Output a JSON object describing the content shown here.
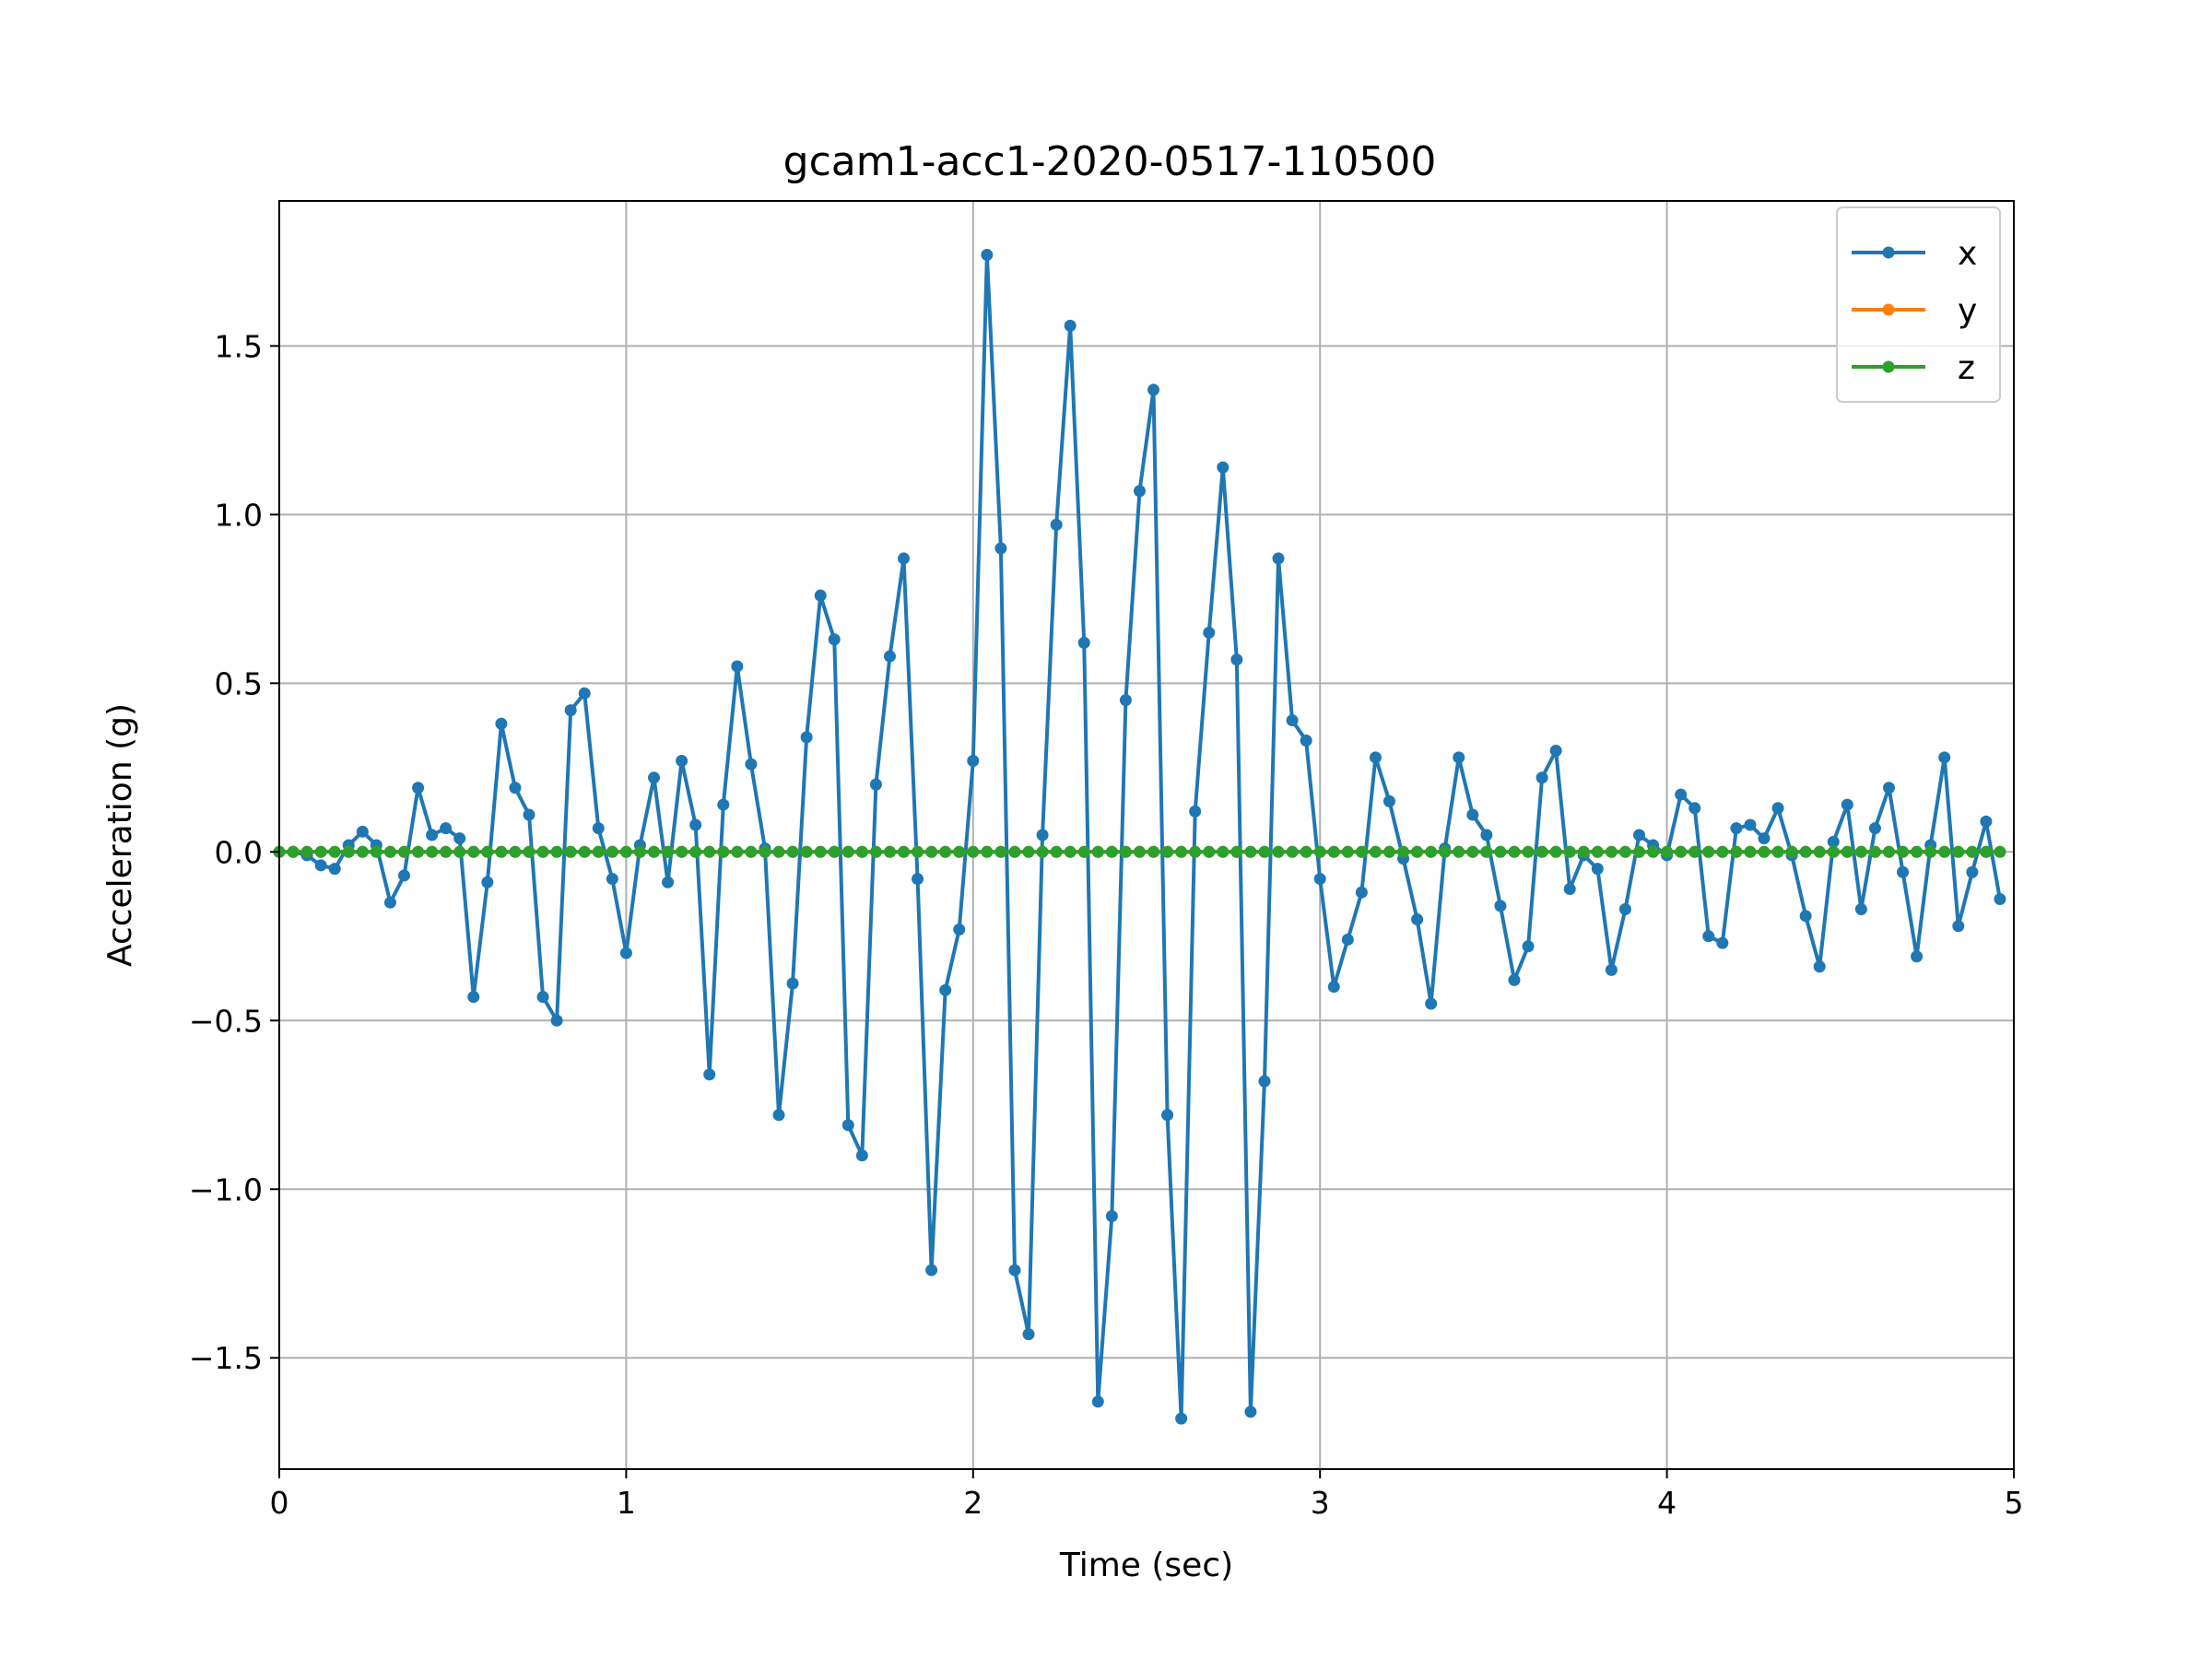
{
  "chart_data": {
    "type": "line",
    "title": "gcam1-acc1-2020-0517-110500",
    "xlabel": "Time (sec)",
    "ylabel": "Acceleration (g)",
    "xlim": [
      0,
      5
    ],
    "ylim": [
      -1.83,
      1.93
    ],
    "xticks": [
      0,
      1,
      2,
      3,
      4,
      5
    ],
    "xtick_labels": [
      "0",
      "1",
      "2",
      "3",
      "4",
      "5"
    ],
    "yticks": [
      -1.5,
      -1.0,
      -0.5,
      0.0,
      0.5,
      1.0,
      1.5
    ],
    "ytick_labels": [
      "−1.5",
      "−1.0",
      "−0.5",
      "0.0",
      "0.5",
      "1.0",
      "1.5"
    ],
    "grid": true,
    "legend_position": "top-right",
    "x": [
      0,
      0.04,
      0.08,
      0.12,
      0.16,
      0.2,
      0.24,
      0.28,
      0.32,
      0.36,
      0.4,
      0.44,
      0.48,
      0.52,
      0.56,
      0.6,
      0.64,
      0.68,
      0.72,
      0.76,
      0.8,
      0.84,
      0.88,
      0.92,
      0.96,
      1.0,
      1.04,
      1.08,
      1.12,
      1.16,
      1.2,
      1.24,
      1.28,
      1.32,
      1.36,
      1.4,
      1.44,
      1.48,
      1.52,
      1.56,
      1.6,
      1.64,
      1.68,
      1.72,
      1.76,
      1.8,
      1.84,
      1.88,
      1.92,
      1.96,
      2.0,
      2.04,
      2.08,
      2.12,
      2.16,
      2.2,
      2.24,
      2.28,
      2.32,
      2.36,
      2.4,
      2.44,
      2.48,
      2.52,
      2.56,
      2.6,
      2.64,
      2.68,
      2.72,
      2.76,
      2.8,
      2.84,
      2.88,
      2.92,
      2.96,
      3.0,
      3.04,
      3.08,
      3.12,
      3.16,
      3.2,
      3.24,
      3.28,
      3.32,
      3.36,
      3.4,
      3.44,
      3.48,
      3.52,
      3.56,
      3.6,
      3.64,
      3.68,
      3.72,
      3.76,
      3.8,
      3.84,
      3.88,
      3.92,
      3.96,
      4.0,
      4.04,
      4.08,
      4.12,
      4.16,
      4.2,
      4.24,
      4.28,
      4.32,
      4.36,
      4.4,
      4.44,
      4.48,
      4.52,
      4.56,
      4.6,
      4.64,
      4.68,
      4.72,
      4.76,
      4.8,
      4.84,
      4.88,
      4.92,
      4.96
    ],
    "series": [
      {
        "name": "x",
        "color": "#1f77b4",
        "values": [
          0.0,
          0.0,
          -0.01,
          -0.04,
          -0.05,
          0.02,
          0.06,
          0.02,
          -0.15,
          -0.07,
          0.19,
          0.05,
          0.07,
          0.04,
          -0.43,
          -0.09,
          0.38,
          0.19,
          0.11,
          -0.43,
          -0.5,
          0.42,
          0.47,
          0.07,
          -0.08,
          -0.3,
          0.02,
          0.22,
          -0.09,
          0.27,
          0.08,
          -0.66,
          0.14,
          0.55,
          0.26,
          0.01,
          -0.78,
          -0.39,
          0.34,
          0.76,
          0.63,
          -0.81,
          -0.9,
          0.2,
          0.58,
          0.87,
          -0.08,
          -1.24,
          -0.41,
          -0.23,
          0.27,
          1.77,
          0.9,
          -1.24,
          -1.43,
          0.05,
          0.97,
          1.56,
          0.62,
          -1.63,
          -1.08,
          0.45,
          1.07,
          1.37,
          -0.78,
          -1.68,
          0.12,
          0.65,
          1.14,
          0.57,
          -1.66,
          -0.68,
          0.87,
          0.39,
          0.33,
          -0.08,
          -0.4,
          -0.26,
          -0.12,
          0.28,
          0.15,
          -0.02,
          -0.2,
          -0.45,
          0.01,
          0.28,
          0.11,
          0.05,
          -0.16,
          -0.38,
          -0.28,
          0.22,
          0.3,
          -0.11,
          -0.01,
          -0.05,
          -0.35,
          -0.17,
          0.05,
          0.02,
          -0.01,
          0.17,
          0.13,
          -0.25,
          -0.27,
          0.07,
          0.08,
          0.04,
          0.13,
          -0.01,
          -0.19,
          -0.34,
          0.03,
          0.14,
          -0.17,
          0.07,
          0.19,
          -0.06,
          -0.31,
          0.02,
          0.28,
          -0.22,
          -0.06,
          0.09,
          -0.14
        ]
      },
      {
        "name": "y",
        "color": "#ff7f0e",
        "values": [
          0.0,
          0.0,
          0.0,
          0.0,
          0.0,
          0.0,
          0.0,
          0.0,
          0.0,
          0.0,
          0.0,
          0.0,
          0.0,
          0.0,
          0.0,
          0.0,
          0.0,
          0.0,
          0.0,
          0.0,
          0.0,
          0.0,
          0.0,
          0.0,
          0.0,
          0.0,
          0.0,
          0.0,
          0.0,
          0.0,
          0.0,
          0.0,
          0.0,
          0.0,
          0.0,
          0.0,
          0.0,
          0.0,
          0.0,
          0.0,
          0.0,
          0.0,
          0.0,
          0.0,
          0.0,
          0.0,
          0.0,
          0.0,
          0.0,
          0.0,
          0.0,
          0.0,
          0.0,
          0.0,
          0.0,
          0.0,
          0.0,
          0.0,
          0.0,
          0.0,
          0.0,
          0.0,
          0.0,
          0.0,
          0.0,
          0.0,
          0.0,
          0.0,
          0.0,
          0.0,
          0.0,
          0.0,
          0.0,
          0.0,
          0.0,
          0.0,
          0.0,
          0.0,
          0.0,
          0.0,
          0.0,
          0.0,
          0.0,
          0.0,
          0.0,
          0.0,
          0.0,
          0.0,
          0.0,
          0.0,
          0.0,
          0.0,
          0.0,
          0.0,
          0.0,
          0.0,
          0.0,
          0.0,
          0.0,
          0.0,
          0.0,
          0.0,
          0.0,
          0.0,
          0.0,
          0.0,
          0.0,
          0.0,
          0.0,
          0.0,
          0.0,
          0.0,
          0.0,
          0.0,
          0.0,
          0.0,
          0.0,
          0.0,
          0.0,
          0.0,
          0.0,
          0.0,
          0.0,
          0.0,
          0.0
        ]
      },
      {
        "name": "z",
        "color": "#2ca02c",
        "values": [
          0.0,
          0.0,
          0.0,
          0.0,
          0.0,
          0.0,
          0.0,
          0.0,
          0.0,
          0.0,
          0.0,
          0.0,
          0.0,
          0.0,
          0.0,
          0.0,
          0.0,
          0.0,
          0.0,
          0.0,
          0.0,
          0.0,
          0.0,
          0.0,
          0.0,
          0.0,
          0.0,
          0.0,
          0.0,
          0.0,
          0.0,
          0.0,
          0.0,
          0.0,
          0.0,
          0.0,
          0.0,
          0.0,
          0.0,
          0.0,
          0.0,
          0.0,
          0.0,
          0.0,
          0.0,
          0.0,
          0.0,
          0.0,
          0.0,
          0.0,
          0.0,
          0.0,
          0.0,
          0.0,
          0.0,
          0.0,
          0.0,
          0.0,
          0.0,
          0.0,
          0.0,
          0.0,
          0.0,
          0.0,
          0.0,
          0.0,
          0.0,
          0.0,
          0.0,
          0.0,
          0.0,
          0.0,
          0.0,
          0.0,
          0.0,
          0.0,
          0.0,
          0.0,
          0.0,
          0.0,
          0.0,
          0.0,
          0.0,
          0.0,
          0.0,
          0.0,
          0.0,
          0.0,
          0.0,
          0.0,
          0.0,
          0.0,
          0.0,
          0.0,
          0.0,
          0.0,
          0.0,
          0.0,
          0.0,
          0.0,
          0.0,
          0.0,
          0.0,
          0.0,
          0.0,
          0.0,
          0.0,
          0.0,
          0.0,
          0.0,
          0.0,
          0.0,
          0.0,
          0.0,
          0.0,
          0.0,
          0.0,
          0.0,
          0.0,
          0.0,
          0.0,
          0.0,
          0.0,
          0.0,
          0.0
        ]
      }
    ]
  }
}
